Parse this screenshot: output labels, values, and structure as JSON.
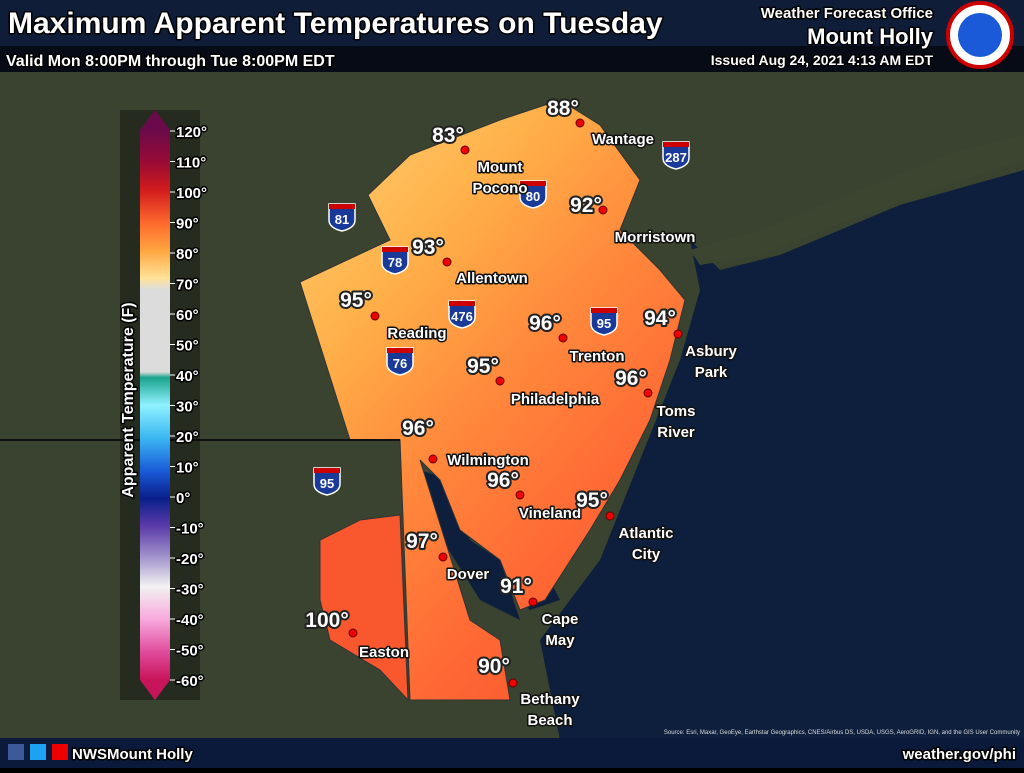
{
  "header": {
    "title": "Maximum Apparent Temperatures on Tuesday",
    "subtitle": "Valid Mon 8:00PM through Tue 8:00PM EDT",
    "office_label": "Weather Forecast Office",
    "office": "Mount Holly",
    "issued": "Issued Aug 24, 2021 4:13 AM EDT"
  },
  "legend": {
    "title": "Apparent Temperature (F)",
    "ticks": [
      "120°",
      "110°",
      "100°",
      "90°",
      "80°",
      "70°",
      "60°",
      "50°",
      "40°",
      "30°",
      "20°",
      "10°",
      "0°",
      "-10°",
      "-20°",
      "-30°",
      "-40°",
      "-50°",
      "-60°"
    ]
  },
  "cities": [
    {
      "temp": "83°",
      "name": [
        "Mount",
        "Pocono"
      ]
    },
    {
      "temp": "88°",
      "name": [
        "Wantage"
      ]
    },
    {
      "temp": "92°",
      "name": [
        "Morristown"
      ]
    },
    {
      "temp": "93°",
      "name": [
        "Allentown"
      ]
    },
    {
      "temp": "95°",
      "name": [
        "Reading"
      ]
    },
    {
      "temp": "96°",
      "name": [
        "Trenton"
      ]
    },
    {
      "temp": "94°",
      "name": [
        "Asbury",
        "Park"
      ]
    },
    {
      "temp": "95°",
      "name": [
        "Philadelphia"
      ]
    },
    {
      "temp": "96°",
      "name": [
        "Toms",
        "River"
      ]
    },
    {
      "temp": "96°",
      "name": [
        "Wilmington"
      ]
    },
    {
      "temp": "96°",
      "name": [
        "Vineland"
      ]
    },
    {
      "temp": "95°",
      "name": [
        "Atlantic",
        "City"
      ]
    },
    {
      "temp": "97°",
      "name": [
        "Dover"
      ]
    },
    {
      "temp": "91°",
      "name": [
        "Cape",
        "May"
      ]
    },
    {
      "temp": "100°",
      "name": [
        "Easton"
      ]
    },
    {
      "temp": "90°",
      "name": [
        "Bethany",
        "Beach"
      ]
    }
  ],
  "highways": [
    "287",
    "80",
    "81",
    "78",
    "476",
    "95",
    "76",
    "95"
  ],
  "footer": {
    "account": "NWSMount Holly",
    "website": "weather.gov/phi",
    "source": "Source: Esri, Maxar, GeoEye, Earthstar Geographics, CNES/Airbus DS, USDA, USGS, AeroGRID, IGN, and the GIS User Community"
  }
}
